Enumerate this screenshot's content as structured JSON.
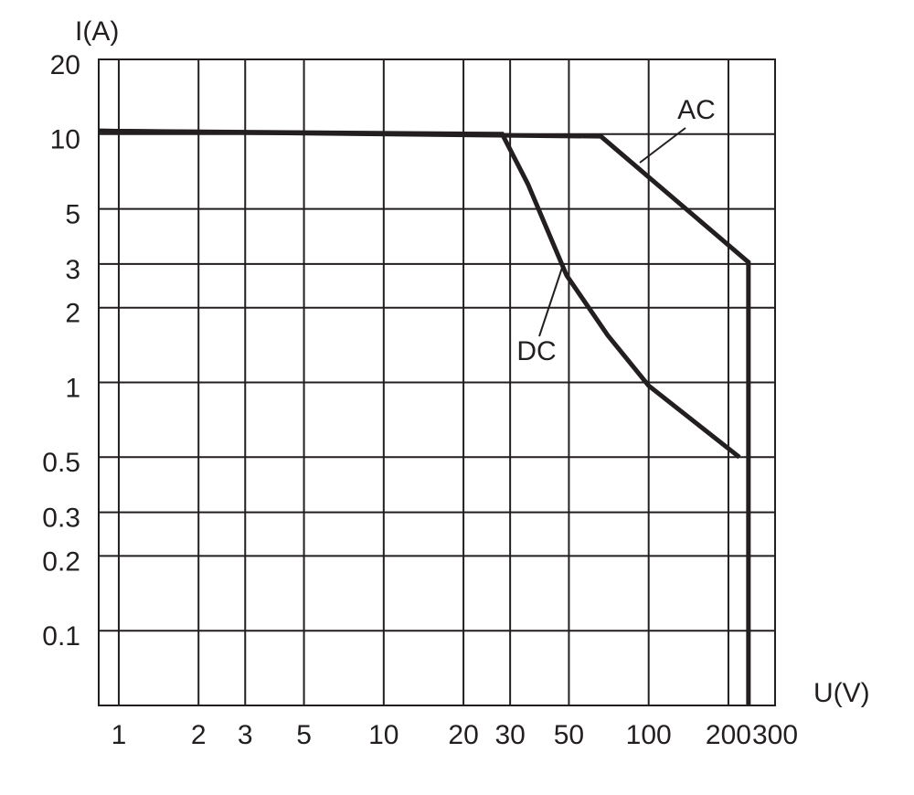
{
  "chart_data": {
    "type": "line",
    "xlabel": "U(V)",
    "ylabel": "I(A)",
    "xscale": "log",
    "yscale": "log",
    "grid": true,
    "xlim": [
      0.84,
      300
    ],
    "xticks": [
      1,
      2,
      3,
      5,
      10,
      20,
      30,
      50,
      100,
      200,
      300
    ],
    "ylim": [
      0.05,
      20
    ],
    "yticks": [
      0.1,
      0.2,
      0.3,
      0.5,
      1,
      2,
      3,
      5,
      10,
      20
    ],
    "series": [
      {
        "name": "AC",
        "color": "#231f20",
        "x": [
          0.84,
          66,
          238,
          238
        ],
        "values": [
          10.3,
          9.8,
          3.05,
          0.05
        ]
      },
      {
        "name": "DC",
        "color": "#231f20",
        "x": [
          0.84,
          28,
          35,
          49,
          70,
          100,
          150,
          220
        ],
        "values": [
          10.3,
          10,
          6.3,
          2.7,
          1.55,
          0.97,
          0.69,
          0.5
        ]
      }
    ]
  }
}
